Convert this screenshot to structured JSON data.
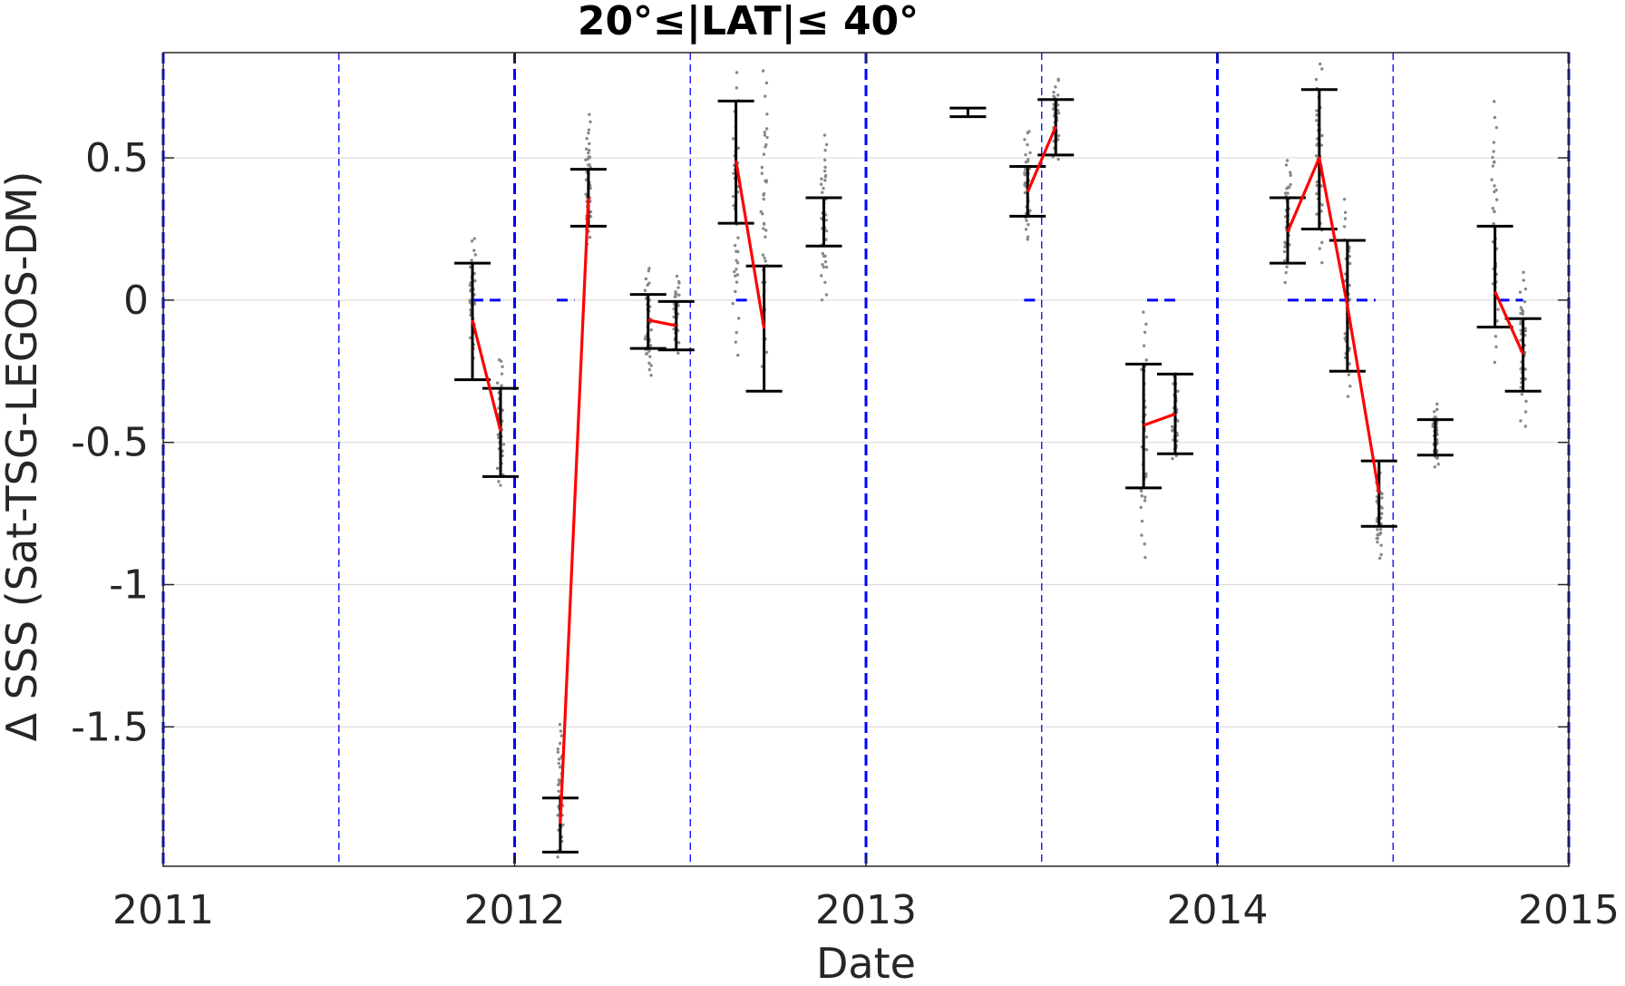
{
  "chart_data": {
    "type": "scatter",
    "title": "20°≤|LAT|≤ 40°",
    "xlabel": "Date",
    "ylabel": "Δ SSS (Sat-TSG-LEGOS-DM)",
    "xlim": [
      2011,
      2015
    ],
    "ylim": [
      -1.99,
      0.87
    ],
    "x_ticks": [
      {
        "value": 2011,
        "label": "2011"
      },
      {
        "value": 2012,
        "label": "2012"
      },
      {
        "value": 2013,
        "label": "2013"
      },
      {
        "value": 2014,
        "label": "2014"
      },
      {
        "value": 2015,
        "label": "2015"
      }
    ],
    "y_ticks": [
      {
        "value": 0.5,
        "label": "0.5"
      },
      {
        "value": 0,
        "label": "0"
      },
      {
        "value": -0.5,
        "label": "-0.5"
      },
      {
        "value": -1,
        "label": "-1"
      },
      {
        "value": -1.5,
        "label": "-1.5"
      }
    ],
    "grid": "horizontal",
    "colors": {
      "mean_line": "#ff0000",
      "error_bar": "#000000",
      "points": "#888888",
      "reference_lines": "#0000ff",
      "grid": "#dcdcdc"
    },
    "year_lines": [
      2011,
      2012,
      2013,
      2014,
      2015
    ],
    "half_year_lines": [
      2011.5,
      2012.5,
      2013.5,
      2014.5
    ],
    "zero_segments": [
      [
        2011.88,
        2011.96
      ],
      [
        2012.12,
        2012.17
      ],
      [
        2012.63,
        2012.67
      ],
      [
        2013.45,
        2013.5
      ],
      [
        2013.8,
        2013.88
      ],
      [
        2014.2,
        2014.45
      ],
      [
        2014.8,
        2014.87
      ]
    ],
    "error_bars": [
      {
        "x": 2011.88,
        "low": -0.28,
        "high": 0.13
      },
      {
        "x": 2011.96,
        "low": -0.62,
        "high": -0.31
      },
      {
        "x": 2012.13,
        "low": -1.94,
        "high": -1.75
      },
      {
        "x": 2012.21,
        "low": 0.26,
        "high": 0.46
      },
      {
        "x": 2012.38,
        "low": -0.17,
        "high": 0.02
      },
      {
        "x": 2012.46,
        "low": -0.175,
        "high": -0.005
      },
      {
        "x": 2012.63,
        "low": 0.27,
        "high": 0.7
      },
      {
        "x": 2012.71,
        "low": -0.32,
        "high": 0.12
      },
      {
        "x": 2012.88,
        "low": 0.19,
        "high": 0.36
      },
      {
        "x": 2013.29,
        "low": 0.645,
        "high": 0.675
      },
      {
        "x": 2013.46,
        "low": 0.295,
        "high": 0.47
      },
      {
        "x": 2013.54,
        "low": 0.51,
        "high": 0.705
      },
      {
        "x": 2013.79,
        "low": -0.66,
        "high": -0.225
      },
      {
        "x": 2013.88,
        "low": -0.54,
        "high": -0.26
      },
      {
        "x": 2014.2,
        "low": 0.13,
        "high": 0.36
      },
      {
        "x": 2014.29,
        "low": 0.25,
        "high": 0.74
      },
      {
        "x": 2014.37,
        "low": -0.25,
        "high": 0.21
      },
      {
        "x": 2014.46,
        "low": -0.795,
        "high": -0.565
      },
      {
        "x": 2014.62,
        "low": -0.545,
        "high": -0.42
      },
      {
        "x": 2014.79,
        "low": -0.095,
        "high": 0.26
      },
      {
        "x": 2014.87,
        "low": -0.32,
        "high": -0.065
      }
    ],
    "red_segments": [
      [
        [
          2011.88,
          -0.07
        ],
        [
          2011.96,
          -0.46
        ]
      ],
      [
        [
          2012.13,
          -1.84
        ],
        [
          2012.21,
          0.36
        ]
      ],
      [
        [
          2012.38,
          -0.07
        ],
        [
          2012.46,
          -0.09
        ]
      ],
      [
        [
          2012.63,
          0.49
        ],
        [
          2012.71,
          -0.1
        ]
      ],
      [
        [
          2013.46,
          0.38
        ],
        [
          2013.54,
          0.61
        ]
      ],
      [
        [
          2013.79,
          -0.44
        ],
        [
          2013.88,
          -0.4
        ]
      ],
      [
        [
          2014.2,
          0.24
        ],
        [
          2014.29,
          0.5
        ],
        [
          2014.37,
          -0.02
        ],
        [
          2014.46,
          -0.68
        ]
      ],
      [
        [
          2014.79,
          0.03
        ],
        [
          2014.87,
          -0.19
        ]
      ]
    ],
    "scatter_clusters": [
      {
        "x": 2011.88,
        "low": -0.2,
        "high": 0.22
      },
      {
        "x": 2011.96,
        "low": -0.66,
        "high": -0.2
      },
      {
        "x": 2012.13,
        "low": -1.95,
        "high": -1.49
      },
      {
        "x": 2012.21,
        "low": 0.19,
        "high": 0.65
      },
      {
        "x": 2012.38,
        "low": -0.27,
        "high": 0.12
      },
      {
        "x": 2012.46,
        "low": -0.18,
        "high": 0.08
      },
      {
        "x": 2012.63,
        "low": -0.2,
        "high": 0.8
      },
      {
        "x": 2012.71,
        "low": -0.23,
        "high": 0.81
      },
      {
        "x": 2012.88,
        "low": 0.0,
        "high": 0.58
      },
      {
        "x": 2013.46,
        "low": 0.21,
        "high": 0.6
      },
      {
        "x": 2013.54,
        "low": 0.5,
        "high": 0.78
      },
      {
        "x": 2013.79,
        "low": -0.9,
        "high": -0.04
      },
      {
        "x": 2013.88,
        "low": -0.56,
        "high": -0.26
      },
      {
        "x": 2014.2,
        "low": 0.07,
        "high": 0.49
      },
      {
        "x": 2014.29,
        "low": 0.14,
        "high": 0.84
      },
      {
        "x": 2014.37,
        "low": -0.33,
        "high": 0.35
      },
      {
        "x": 2014.46,
        "low": -0.9,
        "high": -0.6
      },
      {
        "x": 2014.62,
        "low": -0.58,
        "high": -0.37
      },
      {
        "x": 2014.79,
        "low": -0.21,
        "high": 0.69
      },
      {
        "x": 2014.87,
        "low": -0.44,
        "high": 0.1
      }
    ]
  }
}
